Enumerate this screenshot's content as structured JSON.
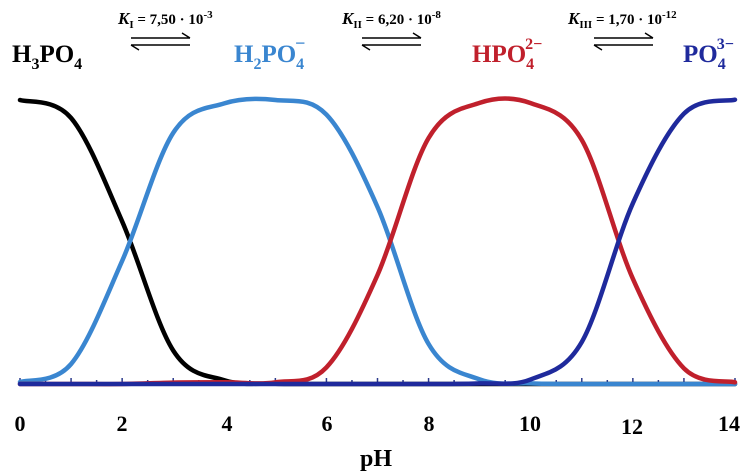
{
  "chart_data": {
    "type": "line",
    "title": "",
    "xlabel": "pH",
    "ylabel": "",
    "xlim": [
      0,
      14
    ],
    "ylim": [
      0,
      1
    ],
    "grid": false,
    "x_ticks": [
      0,
      2,
      4,
      6,
      8,
      10,
      12,
      14
    ],
    "x_tick_labels": [
      "0",
      "2",
      "4",
      "6",
      "8",
      "10",
      "12",
      "14"
    ],
    "pKa": [
      2.12,
      7.21,
      11.77
    ],
    "equilibrium_constants": [
      {
        "symbol": "K",
        "subscript": "I",
        "label": " = 7,50 · 10",
        "exponent": "-3"
      },
      {
        "symbol": "K",
        "subscript": "II",
        "label": " = 6,20 · 10",
        "exponent": "-8"
      },
      {
        "symbol": "K",
        "subscript": "III",
        "label": " = 1,70 · 10",
        "exponent": "-12"
      }
    ],
    "series": [
      {
        "name": "H3PO4",
        "color": "#000000",
        "x": [
          0,
          1,
          2,
          3,
          4,
          5,
          6,
          7,
          8,
          9,
          10,
          11,
          12,
          13,
          14
        ],
        "values": [
          0.993,
          0.93,
          0.569,
          0.117,
          0.013,
          0.001,
          0.0,
          0.0,
          0.0,
          0.0,
          0.0,
          0.0,
          0.0,
          0.0,
          0.0
        ]
      },
      {
        "name": "H2PO4-",
        "color": "#3a86d0",
        "x": [
          0,
          1,
          2,
          3,
          4,
          5,
          6,
          7,
          8,
          9,
          10,
          11,
          12,
          13,
          14
        ],
        "values": [
          0.007,
          0.07,
          0.43,
          0.878,
          0.981,
          0.993,
          0.942,
          0.619,
          0.14,
          0.016,
          0.002,
          0.0,
          0.0,
          0.0,
          0.0
        ]
      },
      {
        "name": "HPO4 2-",
        "color": "#c0202c",
        "x": [
          0,
          1,
          2,
          3,
          4,
          5,
          6,
          7,
          8,
          9,
          10,
          11,
          12,
          13,
          14
        ],
        "values": [
          0.0,
          0.0,
          0.0,
          0.005,
          0.006,
          0.006,
          0.058,
          0.381,
          0.86,
          0.983,
          0.982,
          0.853,
          0.368,
          0.055,
          0.006
        ]
      },
      {
        "name": "PO4 3-",
        "color": "#1f2a9c",
        "x": [
          0,
          1,
          2,
          3,
          4,
          5,
          6,
          7,
          8,
          9,
          10,
          11,
          12,
          13,
          14
        ],
        "values": [
          0.0,
          0.0,
          0.0,
          0.0,
          0.0,
          0.0,
          0.0,
          0.0,
          0.0,
          0.002,
          0.016,
          0.147,
          0.632,
          0.945,
          0.994
        ]
      }
    ]
  }
}
